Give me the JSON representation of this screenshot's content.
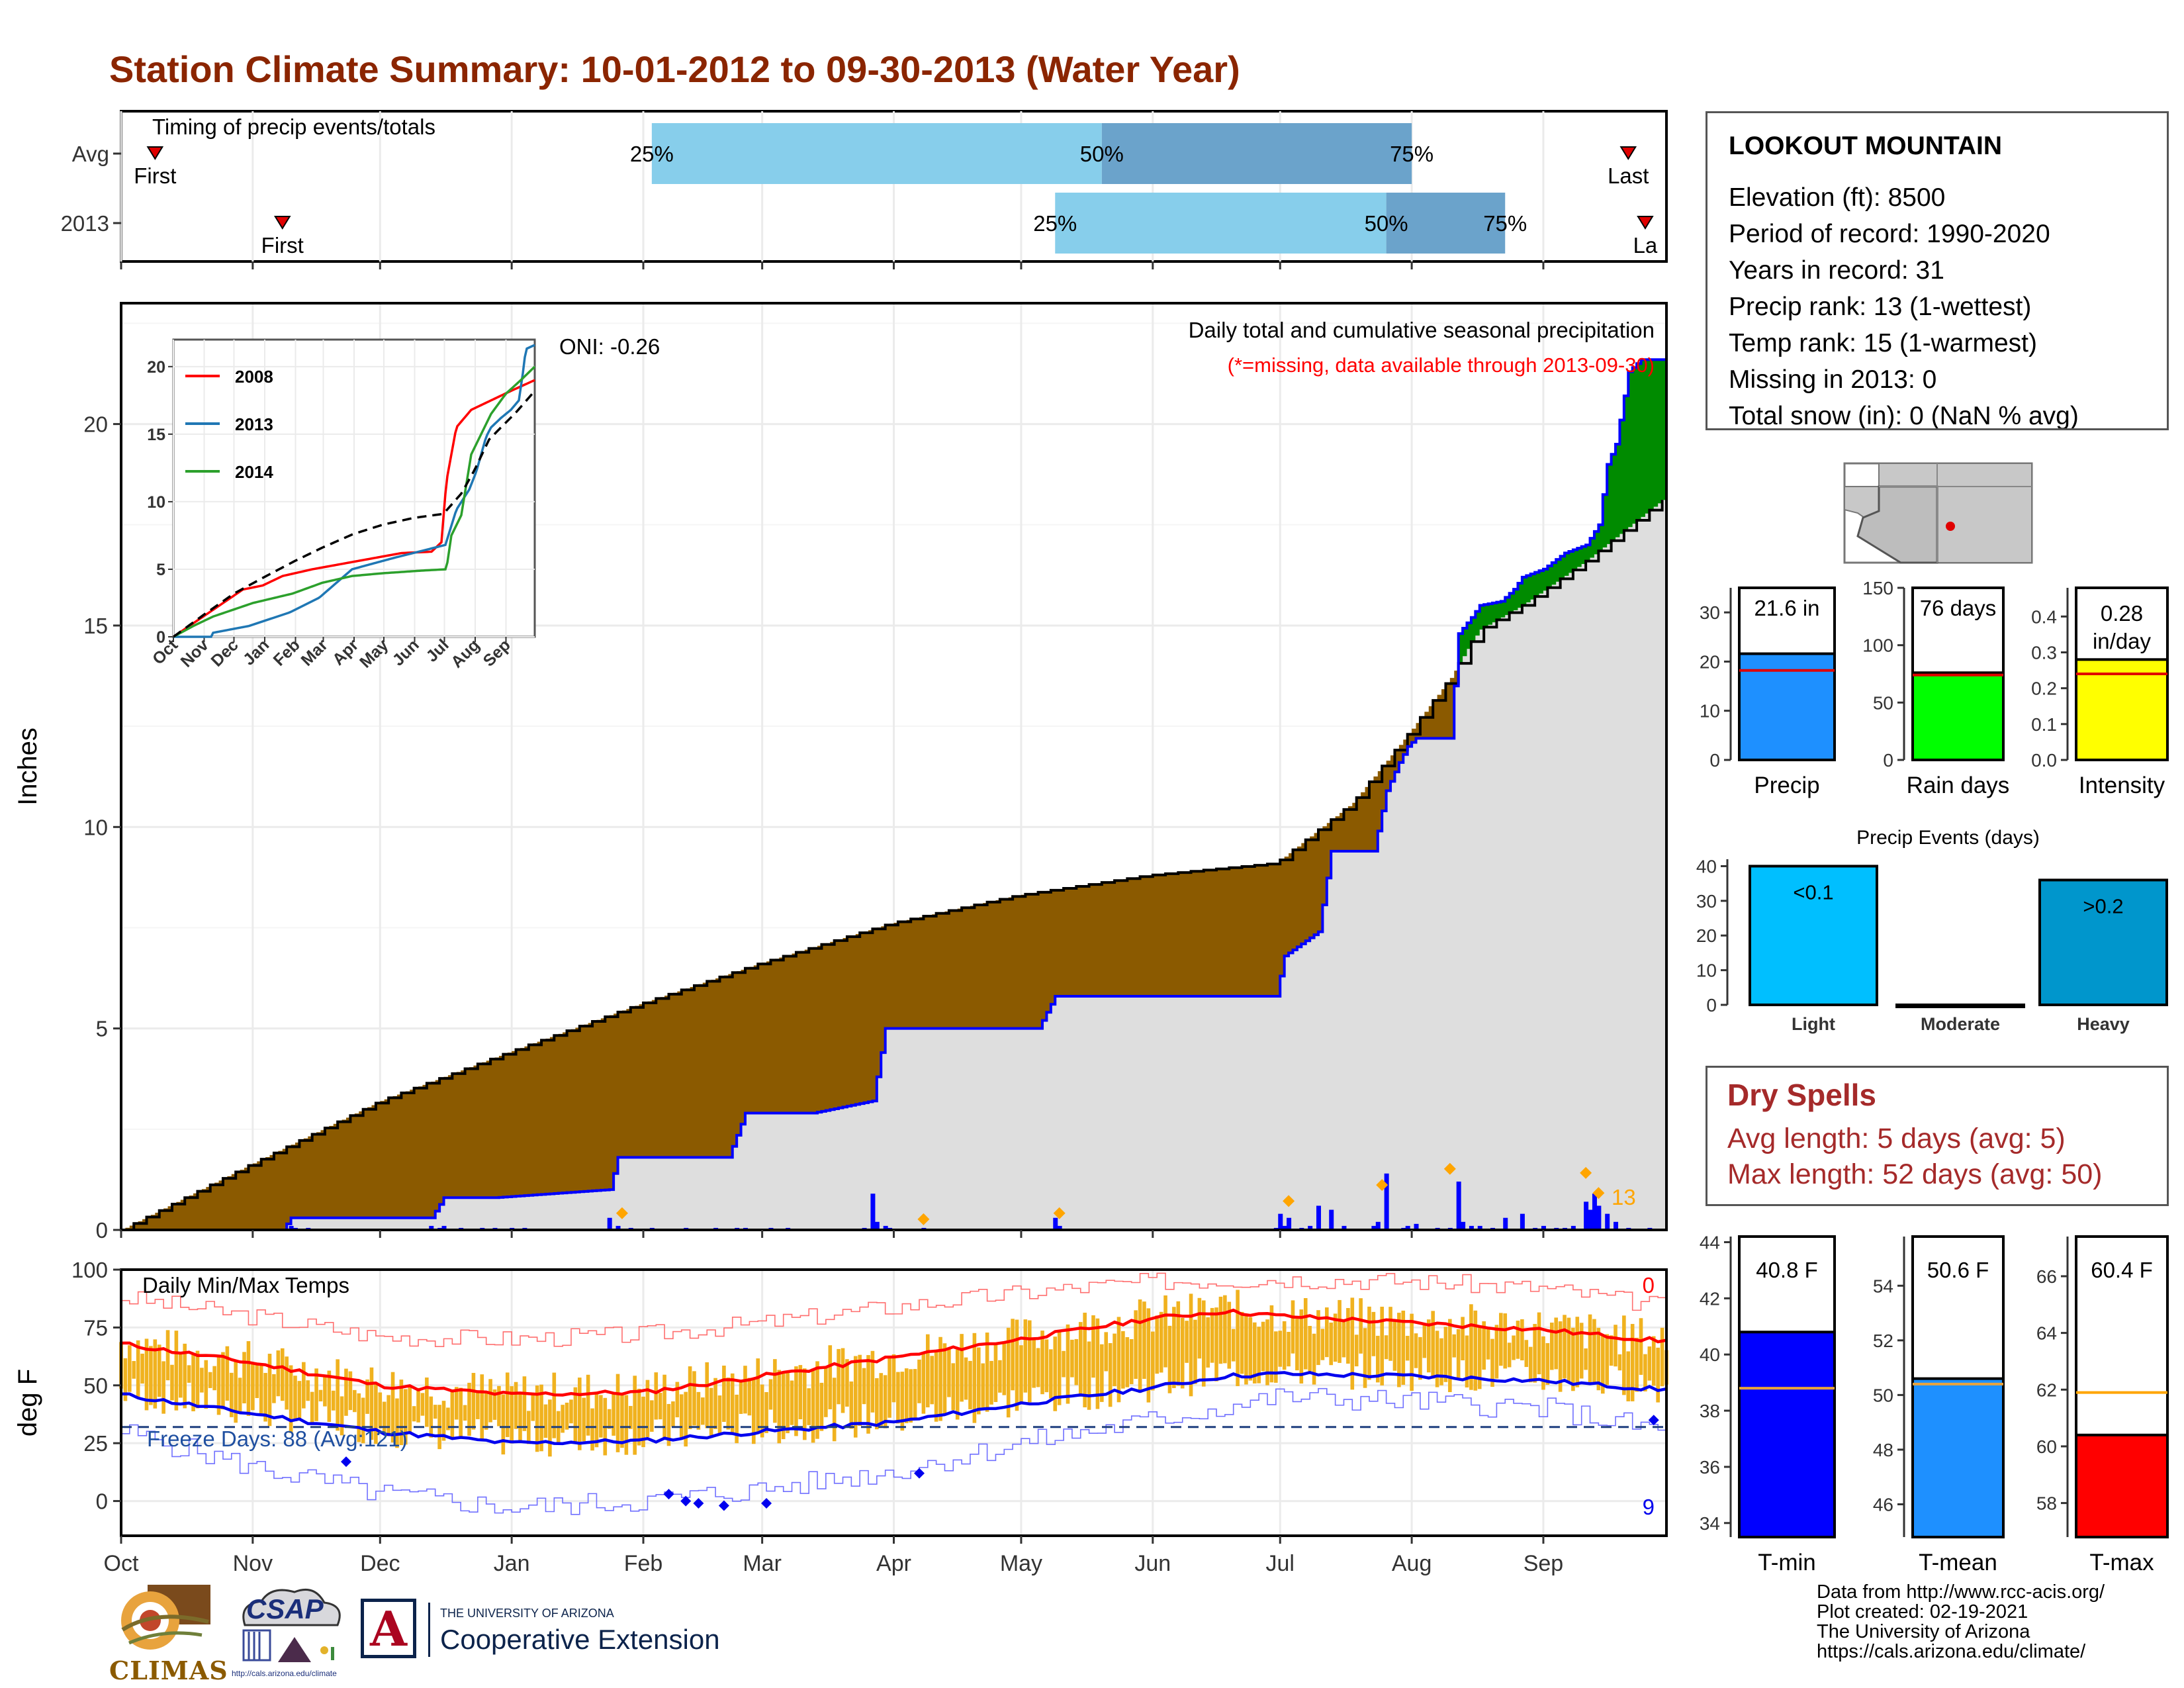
{
  "title": "Station Climate Summary: 10-01-2012 to 09-30-2013 (Water Year)",
  "colors": {
    "title": "#8B2500",
    "brown": "#8B5A00",
    "green": "#008B00",
    "gray_fill": "#DEDEDE",
    "blue_line": "#0000FF",
    "orange": "#FFA500",
    "light_blue": "#87CEEB",
    "mid_blue": "#6BA3CB",
    "temp_bar": "#F0B21F",
    "red": "#FF0000",
    "dry_red": "#A52A2A"
  },
  "timing": {
    "label": "Timing of precip events/totals",
    "rows": [
      {
        "name": "Avg",
        "first_label": "First",
        "first_day": 8,
        "last_label": "Last",
        "last_day": 355,
        "p25": 125,
        "p50": 231,
        "p75": 304,
        "p25_label": "25%",
        "p50_label": "50%",
        "p75_label": "75%"
      },
      {
        "name": "2013",
        "first_label": "First",
        "first_day": 38,
        "last_label": "La",
        "last_day": 359,
        "p25": 220,
        "p50": 298,
        "p75": 326,
        "p25_label": "25%",
        "p50_label": "50%",
        "p75_label": "75%"
      }
    ]
  },
  "main": {
    "ylabel": "Inches",
    "ylim": [
      0,
      23
    ],
    "yticks": [
      "0",
      "5",
      "10",
      "15",
      "20"
    ],
    "annot_title": "Daily total and cumulative seasonal precipitation",
    "annot_missing": "(*=missing, data available through 2013-09-30)",
    "oni": "ONI: -0.26",
    "extreme_count": "13"
  },
  "chart_data": [
    {
      "type": "area",
      "name": "cumulative-precip",
      "xlabel": "",
      "ylabel": "Inches",
      "x_unit": "day of water year (Oct 1 = 0)",
      "series": [
        {
          "name": "average-cumulative",
          "x": [
            0,
            30,
            61,
            91,
            122,
            150,
            181,
            211,
            242,
            272,
            290,
            303,
            313,
            318,
            320,
            330,
            345,
            364
          ],
          "values": [
            0,
            1.6,
            3.2,
            4.4,
            5.6,
            6.6,
            7.6,
            8.3,
            8.8,
            9.1,
            10.6,
            12.3,
            13.7,
            14.6,
            14.9,
            15.5,
            16.6,
            18.2
          ]
        },
        {
          "name": "2013-cumulative",
          "x": [
            0,
            38,
            40,
            73,
            76,
            88,
            115,
            117,
            143,
            147,
            163,
            177,
            180,
            188,
            200,
            216,
            220,
            260,
            272,
            274,
            282,
            285,
            295,
            298,
            301,
            303,
            305,
            313,
            315,
            318,
            320,
            325,
            328,
            330,
            335,
            340,
            345,
            348,
            350,
            352,
            355,
            358,
            364
          ],
          "values": [
            0,
            0,
            0.3,
            0.3,
            0.8,
            0.8,
            1.0,
            1.8,
            1.8,
            2.9,
            2.9,
            3.2,
            5.0,
            5.0,
            5.0,
            5.0,
            5.8,
            5.8,
            5.8,
            6.8,
            7.4,
            9.4,
            9.4,
            10.9,
            11.6,
            12.0,
            12.2,
            12.2,
            14.8,
            15.2,
            15.5,
            15.6,
            15.9,
            16.2,
            16.4,
            16.8,
            17.0,
            17.5,
            19.0,
            19.5,
            21.3,
            21.6,
            21.6
          ]
        }
      ],
      "daily_bars": {
        "x": [
          40,
          41,
          44,
          73,
          75,
          76,
          80,
          85,
          88,
          92,
          95,
          115,
          117,
          120,
          125,
          133,
          140,
          145,
          147,
          153,
          157,
          175,
          177,
          178,
          180,
          181,
          189,
          220,
          221,
          272,
          274,
          273,
          275,
          278,
          280,
          282,
          285,
          288,
          295,
          296,
          298,
          302,
          303,
          305,
          310,
          313,
          315,
          316,
          318,
          320,
          323,
          326,
          330,
          333,
          335,
          338,
          340,
          342,
          345,
          346,
          347,
          348,
          350,
          352,
          355,
          360
        ],
        "values": [
          0.1,
          0.05,
          0.05,
          0.1,
          0.05,
          0.1,
          0.05,
          0.05,
          0.05,
          0.05,
          0.05,
          0.3,
          0.1,
          0.05,
          0.05,
          0.05,
          0.05,
          0.05,
          0.05,
          0.05,
          0.05,
          0.05,
          0.9,
          0.2,
          0.1,
          0.05,
          0.05,
          0.3,
          0.1,
          0.05,
          0.1,
          0.4,
          0.3,
          0.05,
          0.1,
          0.6,
          0.5,
          0.1,
          0.1,
          0.2,
          1.4,
          0.05,
          0.1,
          0.15,
          0.05,
          0.05,
          1.2,
          0.2,
          0.1,
          0.1,
          0.05,
          0.3,
          0.4,
          0.05,
          0.1,
          0.05,
          0.05,
          0.1,
          0.7,
          0.5,
          0.9,
          0.6,
          0.4,
          0.2,
          0.05,
          0.05
        ]
      },
      "extreme_markers": {
        "x": [
          118,
          189,
          221,
          275,
          297,
          313,
          345,
          348
        ],
        "values": [
          0.35,
          0.2,
          0.35,
          0.65,
          1.05,
          1.45,
          1.35,
          0.85
        ]
      },
      "xticks": [
        "Oct",
        "Nov",
        "Dec",
        "Jan",
        "Feb",
        "Mar",
        "Apr",
        "May",
        "Jun",
        "Jul",
        "Aug",
        "Sep"
      ],
      "xtick_days": [
        0,
        31,
        61,
        92,
        123,
        151,
        182,
        212,
        243,
        273,
        304,
        335
      ]
    },
    {
      "type": "line",
      "name": "inset-cumulative-comparison",
      "ylim": [
        0,
        22
      ],
      "yticks": [
        "0",
        "5",
        "10",
        "15",
        "20"
      ],
      "xticks": [
        "Oct",
        "Nov",
        "Dec",
        "Jan",
        "Feb",
        "Mar",
        "Apr",
        "May",
        "Jun",
        "Jul",
        "Aug",
        "Sep"
      ],
      "series": [
        {
          "name": "2008",
          "color": "#FF0000",
          "x": [
            0,
            10,
            30,
            50,
            70,
            90,
            110,
            140,
            170,
            200,
            230,
            260,
            270,
            275,
            285,
            300,
            320,
            340,
            364
          ],
          "values": [
            0,
            0.5,
            1.5,
            2.5,
            3.5,
            3.8,
            4.5,
            5.0,
            5.4,
            5.8,
            6.2,
            6.3,
            7.0,
            11.5,
            15.5,
            16.8,
            17.5,
            18.2,
            19.0
          ]
        },
        {
          "name": "2013",
          "color": "#1F77B4",
          "x": [
            0,
            38,
            40,
            76,
            117,
            147,
            180,
            220,
            274,
            285,
            298,
            305,
            315,
            320,
            330,
            340,
            348,
            352,
            355,
            364
          ],
          "values": [
            0,
            0,
            0.3,
            0.8,
            1.8,
            2.9,
            5.0,
            5.8,
            6.8,
            9.4,
            10.9,
            12.2,
            14.8,
            15.5,
            16.2,
            16.8,
            17.5,
            19.5,
            21.3,
            21.6
          ]
        },
        {
          "name": "2014",
          "color": "#2CA02C",
          "x": [
            0,
            20,
            40,
            80,
            120,
            150,
            180,
            210,
            250,
            275,
            280,
            290,
            300,
            310,
            320,
            335,
            350,
            364
          ],
          "values": [
            0,
            0.8,
            1.5,
            2.5,
            3.2,
            4.0,
            4.5,
            4.7,
            4.9,
            5.0,
            7.5,
            9.0,
            13.5,
            15.0,
            16.5,
            18.0,
            19.0,
            20.0
          ]
        },
        {
          "name": "average",
          "color": "#000000",
          "x": [
            0,
            30,
            61,
            91,
            122,
            150,
            181,
            211,
            242,
            272,
            290,
            303,
            318,
            330,
            345,
            364
          ],
          "values": [
            0,
            1.6,
            3.2,
            4.4,
            5.6,
            6.6,
            7.6,
            8.3,
            8.8,
            9.1,
            10.6,
            12.3,
            14.6,
            15.5,
            16.6,
            18.2
          ]
        }
      ]
    },
    {
      "type": "line",
      "name": "daily-temps",
      "ylabel": "deg F",
      "ylim": [
        -15,
        100
      ],
      "yticks": [
        "0",
        "25",
        "50",
        "75",
        "100"
      ],
      "xticks": [
        "Oct",
        "Nov",
        "Dec",
        "Jan",
        "Feb",
        "Mar",
        "Apr",
        "May",
        "Jun",
        "Jul",
        "Aug",
        "Sep"
      ],
      "series": [
        {
          "name": "avg-max",
          "x": [
            0,
            30,
            61,
            92,
            123,
            151,
            182,
            212,
            243,
            260,
            273,
            304,
            335,
            364
          ],
          "values": [
            68,
            60,
            50,
            46,
            47,
            54,
            62,
            70,
            79,
            82,
            80,
            77,
            74,
            69
          ]
        },
        {
          "name": "avg-min",
          "x": [
            0,
            30,
            61,
            92,
            123,
            151,
            182,
            212,
            243,
            260,
            273,
            304,
            335,
            364
          ],
          "values": [
            46,
            38,
            30,
            25,
            26,
            30,
            34,
            42,
            49,
            54,
            55,
            54,
            52,
            48
          ]
        },
        {
          "name": "record-max",
          "x": [
            0,
            30,
            61,
            92,
            123,
            151,
            182,
            212,
            243,
            273,
            304,
            335,
            364
          ],
          "values": [
            88,
            80,
            71,
            70,
            72,
            77,
            84,
            90,
            95,
            96,
            95,
            92,
            84
          ]
        },
        {
          "name": "record-min",
          "x": [
            0,
            30,
            61,
            92,
            123,
            151,
            182,
            212,
            243,
            273,
            304,
            335,
            364
          ],
          "values": [
            30,
            15,
            3,
            -3,
            0,
            5,
            13,
            25,
            35,
            45,
            43,
            40,
            30
          ]
        },
        {
          "name": "freeze-line",
          "x": [
            0,
            364
          ],
          "values": [
            32,
            32
          ]
        }
      ],
      "labels": {
        "title": "Daily Min/Max Temps",
        "freeze": "Freeze Days: 88 (Avg:121)",
        "count_max": "0",
        "count_min": "9"
      }
    },
    {
      "type": "bar",
      "name": "precip-total",
      "categories": [
        "Precip"
      ],
      "values": [
        21.6
      ],
      "avg": 18.2,
      "ylim": [
        0,
        35
      ],
      "yticks": [
        "0",
        "10",
        "20",
        "30"
      ],
      "label": "21.6 in",
      "color": "#1E90FF"
    },
    {
      "type": "bar",
      "name": "rain-days",
      "categories": [
        "Rain days"
      ],
      "values": [
        76
      ],
      "avg": 74,
      "ylim": [
        0,
        150
      ],
      "yticks": [
        "0",
        "50",
        "100",
        "150"
      ],
      "label": "76 days",
      "color": "#00FF00"
    },
    {
      "type": "bar",
      "name": "intensity",
      "categories": [
        "Intensity"
      ],
      "values": [
        0.28
      ],
      "avg": 0.24,
      "ylim": [
        0,
        0.48
      ],
      "yticks": [
        "0.0",
        "0.1",
        "0.2",
        "0.3",
        "0.4"
      ],
      "label_line1": "0.28",
      "label_line2": "in/day",
      "color": "#FFFF00"
    },
    {
      "type": "bar",
      "name": "precip-events",
      "title": "Precip Events (days)",
      "categories": [
        "Light",
        "Moderate",
        "Heavy"
      ],
      "values": [
        40,
        0,
        36
      ],
      "value_labels": [
        "<0.1",
        "",
        ">0.2"
      ],
      "colors": [
        "#00BFFF",
        "#0096D6",
        "#0096CC"
      ],
      "ylim": [
        0,
        42
      ],
      "yticks": [
        "0",
        "10",
        "20",
        "30",
        "40"
      ]
    },
    {
      "type": "bar",
      "name": "t-min",
      "categories": [
        "T-min"
      ],
      "values": [
        40.8
      ],
      "avg": 38.8,
      "ylim": [
        33.5,
        44.2
      ],
      "yticks": [
        "34",
        "36",
        "38",
        "40",
        "42",
        "44"
      ],
      "label": "40.8 F",
      "color": "#0000FF"
    },
    {
      "type": "bar",
      "name": "t-mean",
      "categories": [
        "T-mean"
      ],
      "values": [
        50.6
      ],
      "avg": 50.4,
      "ylim": [
        44.8,
        55.8
      ],
      "yticks": [
        "46",
        "48",
        "50",
        "52",
        "54"
      ],
      "label": "50.6 F",
      "color": "#1E90FF"
    },
    {
      "type": "bar",
      "name": "t-max",
      "categories": [
        "T-max"
      ],
      "values": [
        60.4
      ],
      "avg": 61.9,
      "ylim": [
        56.8,
        67.4
      ],
      "yticks": [
        "58",
        "60",
        "62",
        "64",
        "66"
      ],
      "label": "60.4 F",
      "color": "#FF0000"
    }
  ],
  "station": {
    "name": "LOOKOUT MOUNTAIN",
    "lines": [
      "Elevation (ft): 8500",
      "Period of record: 1990-2020",
      "Years in record: 31",
      "Precip rank: 13 (1-wettest)",
      "Temp rank: 15 (1-warmest)",
      "Missing in 2013: 0",
      "Total snow (in): 0 (NaN % avg)"
    ]
  },
  "dry_spells": {
    "title": "Dry Spells",
    "avg": "Avg length: 5 days (avg: 5)",
    "max": "Max length: 52 days (avg: 50)"
  },
  "footer": {
    "lines": [
      "Data from http://www.rcc-acis.org/",
      "Plot created: 02-19-2021",
      "The University of Arizona",
      "https://cals.arizona.edu/climate/"
    ],
    "logo_climas": "CLIMAS",
    "logo_csap": "CSAP",
    "logo_csap_url": "http://cals.arizona.edu/climate",
    "ua_line1": "THE UNIVERSITY OF ARIZONA",
    "ua_line2": "Cooperative Extension",
    "ua_letter": "A"
  }
}
